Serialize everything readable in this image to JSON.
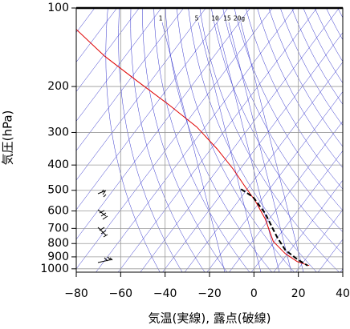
{
  "chart_data": {
    "type": "skewt",
    "xlabel": "気温(実線), 露点(破線)",
    "ylabel": "気圧(hPa)",
    "xlim": [
      -80,
      40
    ],
    "ylim": [
      1030,
      100
    ],
    "log_y": true,
    "grid": true,
    "xticks": [
      {
        "value": -80,
        "label": "−80"
      },
      {
        "value": -60,
        "label": "−60"
      },
      {
        "value": -40,
        "label": "−40"
      },
      {
        "value": -20,
        "label": "−20"
      },
      0,
      20,
      40
    ],
    "yticks": [
      100,
      200,
      300,
      400,
      500,
      600,
      700,
      800,
      900,
      1000
    ],
    "mixing_ratio_labels": [
      1,
      5,
      10,
      15,
      {
        "value": 20,
        "label": "20g"
      }
    ],
    "series": [
      {
        "name": "気温",
        "color": "#e00000",
        "x": [
          -79.9,
          -67.2,
          -52.8,
          -38.3,
          -25.7,
          -16.6,
          -9.4,
          -4.0,
          0.7,
          5.1,
          8.7,
          14.1,
          19.5,
          24.9
        ],
        "values": [
          121,
          153,
          190,
          235,
          286,
          347,
          414,
          484,
          551,
          644,
          785,
          874,
          938,
          972
        ]
      },
      {
        "name": "露点",
        "color": "#000000",
        "x": [
          -5.8,
          -0.4,
          5.1,
          8.7,
          10.5,
          14.1,
          19.5,
          24.2
        ],
        "values": [
          495,
          530,
          613,
          707,
          758,
          846,
          919,
          972
        ]
      }
    ]
  }
}
